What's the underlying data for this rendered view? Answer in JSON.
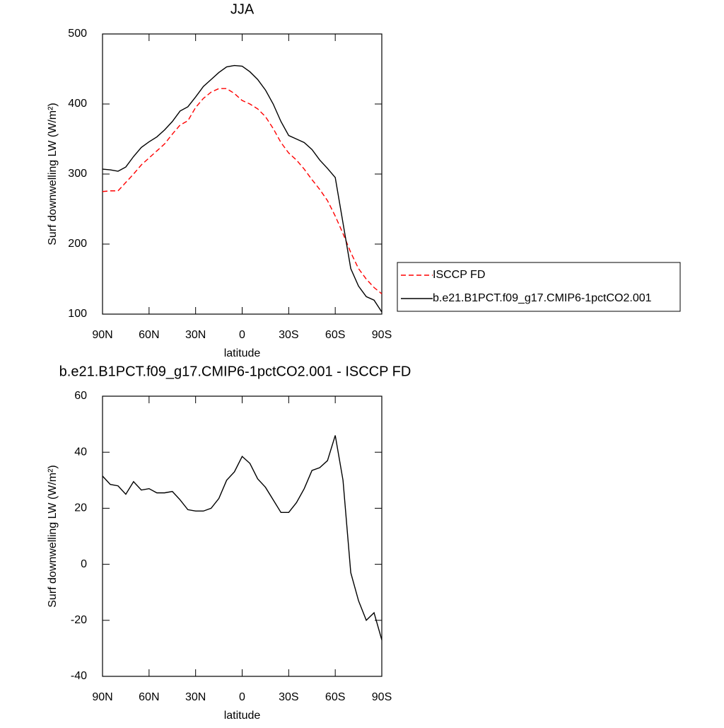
{
  "chart_data": [
    {
      "type": "line",
      "title": "JJA",
      "x_label": "latitude",
      "y_label": "Surf downwelling LW (W/m²)",
      "x": [
        90,
        85,
        80,
        75,
        70,
        65,
        60,
        55,
        50,
        45,
        40,
        35,
        30,
        25,
        20,
        15,
        10,
        5,
        0,
        -5,
        -10,
        -15,
        -20,
        -25,
        -30,
        -35,
        -40,
        -45,
        -50,
        -55,
        -60,
        -65,
        -70,
        -75,
        -80,
        -85,
        -90
      ],
      "xlim": [
        90,
        -90
      ],
      "xticks": [
        {
          "value": 90,
          "label": "90N"
        },
        {
          "value": 60,
          "label": "60N"
        },
        {
          "value": 30,
          "label": "30N"
        },
        0,
        {
          "value": -30,
          "label": "30S"
        },
        {
          "value": -60,
          "label": "60S"
        },
        {
          "value": -90,
          "label": "90S"
        }
      ],
      "ylim": [
        100,
        500
      ],
      "yticks": [
        100,
        200,
        300,
        400,
        500
      ],
      "legend": "right",
      "series": [
        {
          "name": "ISCCP FD",
          "color": "#ff0000",
          "dashed": true,
          "values": [
            275,
            276,
            276,
            288,
            300,
            313,
            323,
            333,
            343,
            357,
            370,
            376,
            395,
            408,
            417,
            422,
            422,
            415,
            405,
            400,
            393,
            382,
            365,
            345,
            330,
            320,
            307,
            292,
            278,
            262,
            240,
            215,
            188,
            165,
            150,
            138,
            129
          ]
        },
        {
          "name": "b.e21.B1PCT.f09_g17.CMIP6-1pctCO2.001",
          "color": "#000000",
          "dashed": false,
          "values": [
            307,
            306,
            304,
            310,
            325,
            338,
            346,
            353,
            363,
            375,
            390,
            396,
            410,
            425,
            435,
            445,
            453,
            455,
            454,
            446,
            435,
            420,
            400,
            375,
            355,
            350,
            345,
            335,
            320,
            308,
            295,
            230,
            165,
            140,
            125,
            120,
            103
          ]
        }
      ]
    },
    {
      "type": "line",
      "title": "b.e21.B1PCT.f09_g17.CMIP6-1pctCO2.001 - ISCCP FD",
      "x_label": "latitude",
      "y_label": "Surf downwelling LW (W/m²)",
      "x": [
        90,
        85,
        80,
        75,
        70,
        65,
        60,
        55,
        50,
        45,
        40,
        35,
        30,
        25,
        20,
        15,
        10,
        5,
        0,
        -5,
        -10,
        -15,
        -20,
        -25,
        -30,
        -35,
        -40,
        -45,
        -50,
        -55,
        -60,
        -65,
        -70,
        -75,
        -80,
        -85,
        -90
      ],
      "xlim": [
        90,
        -90
      ],
      "xticks": [
        {
          "value": 90,
          "label": "90N"
        },
        {
          "value": 60,
          "label": "60N"
        },
        {
          "value": 30,
          "label": "30N"
        },
        0,
        {
          "value": -30,
          "label": "30S"
        },
        {
          "value": -60,
          "label": "60S"
        },
        {
          "value": -90,
          "label": "90S"
        }
      ],
      "ylim": [
        -40,
        60
      ],
      "yticks": [
        -40,
        -20,
        0,
        20,
        40,
        60
      ],
      "series": [
        {
          "color": "#000000",
          "dashed": false,
          "values": [
            31.5,
            28.5,
            28,
            25,
            29.5,
            26.5,
            27,
            25.5,
            25.5,
            26,
            23,
            19.5,
            19,
            19,
            20,
            23.5,
            30,
            33,
            38.5,
            36,
            30.5,
            27.5,
            23,
            18.5,
            18.5,
            22,
            27,
            33.5,
            34.5,
            37,
            46,
            30,
            -3,
            -13,
            -20,
            -17.3,
            -27
          ]
        }
      ]
    }
  ]
}
